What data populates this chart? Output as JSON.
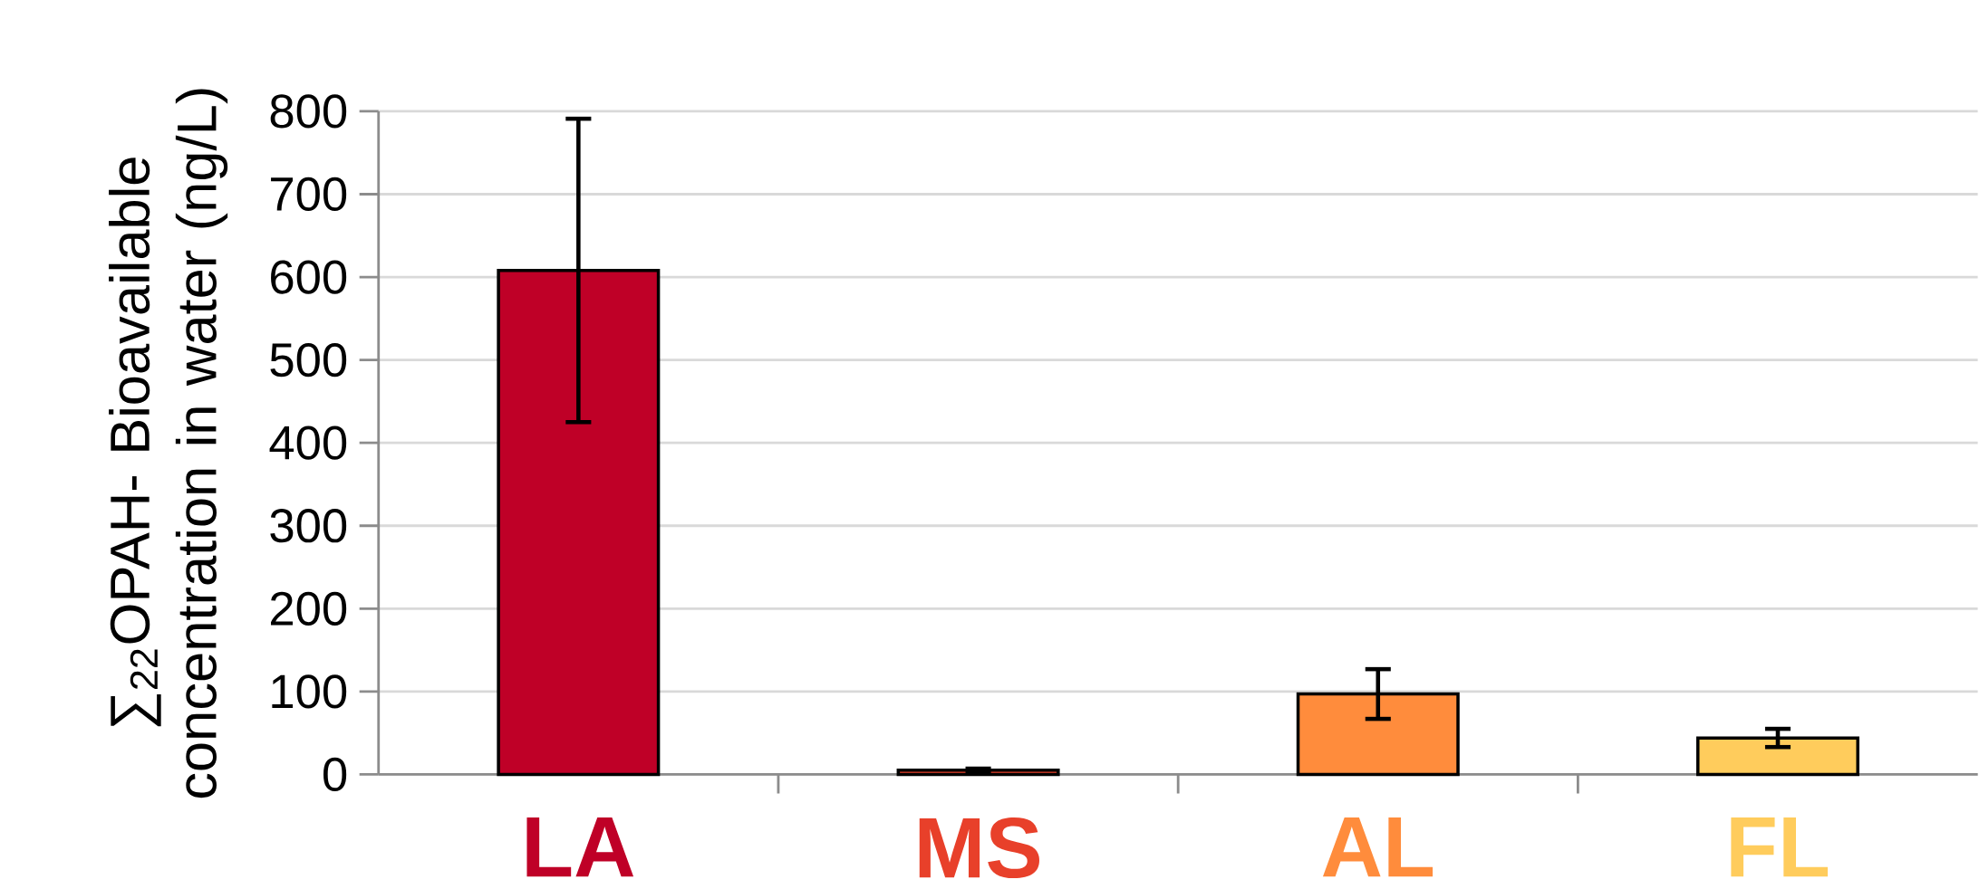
{
  "chart_data": {
    "type": "bar",
    "ylabel": "∑$_{22}$OPAH- Bioavailable concentration in water (ng/L)",
    "categories": [
      "LA",
      "MS",
      "AL",
      "FL"
    ],
    "values": [
      608,
      5,
      97,
      44
    ],
    "errors": [
      183,
      2,
      30,
      11
    ],
    "colors": [
      "#bf0027",
      "#e8402a",
      "#ff8c3c",
      "#ffcc5c"
    ],
    "ylim": [
      0,
      800
    ],
    "yticks": [
      0,
      100,
      200,
      300,
      400,
      500,
      600,
      700,
      800
    ],
    "grid": "y"
  }
}
